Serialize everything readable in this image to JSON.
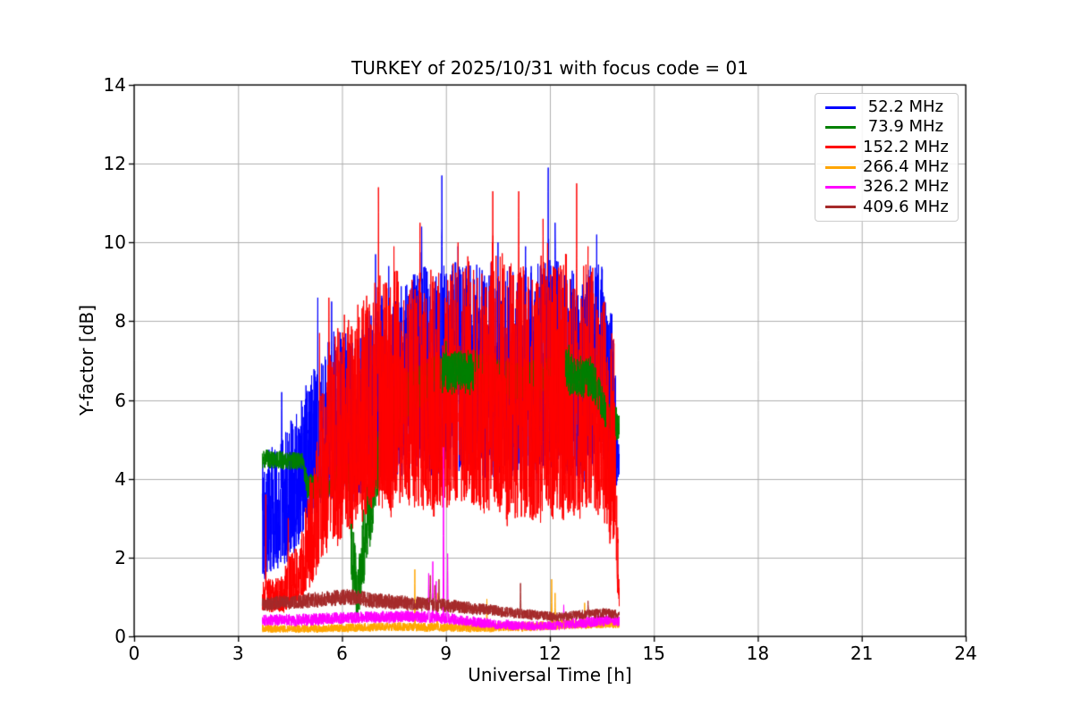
{
  "chart_data": {
    "type": "line",
    "title": "TURKEY of 2025/10/31 with focus code = 01",
    "xlabel": "Universal Time [h]",
    "ylabel": "Y-factor [dB]",
    "xlim": [
      0,
      24
    ],
    "ylim": [
      0,
      14
    ],
    "xticks": [
      0,
      3,
      6,
      9,
      12,
      15,
      18,
      21,
      24
    ],
    "yticks": [
      0,
      2,
      4,
      6,
      8,
      10,
      12,
      14
    ],
    "grid": true,
    "grid_color": "#b0b0b0",
    "axis_color": "#000000",
    "background_color": "#ffffff",
    "legend": {
      "position": "upper right",
      "border_color": "#cccccc"
    },
    "series": [
      {
        "name": "52.2 MHz",
        "label": " 52.2 MHz",
        "color": "#0000ff",
        "x_start": 3.7,
        "x_end": 14.0,
        "noise_exp": 1.35,
        "envelope": [
          [
            3.7,
            0.8,
            4.6
          ],
          [
            4.2,
            1.0,
            5.0
          ],
          [
            4.7,
            1.5,
            6.0
          ],
          [
            5.2,
            2.2,
            6.8
          ],
          [
            5.8,
            2.5,
            7.8
          ],
          [
            6.4,
            2.6,
            7.6
          ],
          [
            7.0,
            2.8,
            8.6
          ],
          [
            7.6,
            2.9,
            8.8
          ],
          [
            8.2,
            3.0,
            9.3
          ],
          [
            8.9,
            3.0,
            9.6
          ],
          [
            9.6,
            3.0,
            9.4
          ],
          [
            10.4,
            2.9,
            9.5
          ],
          [
            11.2,
            2.9,
            9.3
          ],
          [
            12.0,
            2.9,
            9.6
          ],
          [
            12.8,
            2.9,
            9.3
          ],
          [
            13.5,
            3.0,
            9.5
          ],
          [
            13.85,
            3.2,
            8.0
          ],
          [
            13.95,
            3.4,
            5.2
          ],
          [
            14.0,
            3.8,
            4.8
          ]
        ],
        "spikes": [
          [
            4.26,
            6.2
          ],
          [
            5.3,
            8.6
          ],
          [
            5.7,
            8.5
          ],
          [
            6.97,
            9.7
          ],
          [
            7.35,
            9.4
          ],
          [
            8.3,
            10.4
          ],
          [
            8.88,
            11.7
          ],
          [
            9.35,
            9.9
          ],
          [
            10.5,
            10.0
          ],
          [
            11.3,
            9.9
          ],
          [
            11.95,
            11.9
          ],
          [
            12.15,
            10.5
          ],
          [
            13.35,
            10.2
          ]
        ]
      },
      {
        "name": "73.9 MHz",
        "label": " 73.9 MHz",
        "color": "#008000",
        "x_start": 3.7,
        "x_end": 14.0,
        "noise_exp": 1.0,
        "envelope": [
          [
            3.7,
            4.15,
            4.75
          ],
          [
            4.85,
            4.1,
            4.65
          ],
          [
            5.0,
            3.35,
            4.15
          ],
          [
            5.6,
            3.3,
            4.0
          ],
          [
            6.05,
            3.6,
            4.6
          ],
          [
            6.2,
            3.4,
            4.4
          ],
          [
            6.3,
            0.1,
            3.0
          ],
          [
            6.45,
            0.05,
            1.6
          ],
          [
            6.6,
            0.8,
            3.2
          ],
          [
            6.9,
            2.2,
            4.6
          ],
          [
            7.3,
            4.4,
            6.2
          ],
          [
            8.0,
            5.4,
            6.9
          ],
          [
            8.9,
            5.8,
            7.2
          ],
          [
            9.8,
            5.9,
            7.3
          ],
          [
            10.6,
            5.7,
            7.0
          ],
          [
            11.5,
            5.7,
            7.0
          ],
          [
            12.4,
            5.9,
            7.3
          ],
          [
            13.2,
            5.7,
            7.1
          ],
          [
            13.6,
            5.0,
            6.2
          ],
          [
            13.9,
            4.7,
            5.9
          ],
          [
            14.0,
            4.8,
            5.6
          ]
        ],
        "spikes": [
          [
            9.0,
            7.5
          ],
          [
            12.55,
            7.4
          ]
        ],
        "overlay_windows": [
          [
            8.88,
            9.8
          ],
          [
            12.45,
            13.35
          ],
          [
            13.38,
            13.62
          ],
          [
            13.9,
            14.0
          ]
        ]
      },
      {
        "name": "152.2 MHz",
        "label": "152.2 MHz",
        "color": "#ff0000",
        "x_start": 3.7,
        "x_end": 14.0,
        "noise_exp": 1.5,
        "envelope": [
          [
            3.7,
            0.4,
            1.4
          ],
          [
            4.3,
            0.4,
            1.7
          ],
          [
            4.8,
            0.5,
            2.6
          ],
          [
            5.2,
            0.8,
            4.6
          ],
          [
            5.5,
            1.0,
            7.0
          ],
          [
            5.9,
            1.2,
            8.3
          ],
          [
            6.3,
            1.5,
            8.2
          ],
          [
            6.7,
            1.8,
            8.9
          ],
          [
            7.1,
            2.0,
            9.8
          ],
          [
            7.6,
            2.0,
            9.5
          ],
          [
            8.1,
            2.0,
            9.0
          ],
          [
            8.5,
            2.0,
            9.6
          ],
          [
            9.0,
            2.0,
            9.3
          ],
          [
            9.5,
            1.9,
            9.7
          ],
          [
            10.0,
            1.7,
            9.5
          ],
          [
            10.5,
            1.6,
            9.8
          ],
          [
            11.0,
            1.5,
            9.5
          ],
          [
            11.5,
            1.5,
            9.3
          ],
          [
            11.9,
            1.6,
            10.0
          ],
          [
            12.3,
            1.6,
            9.8
          ],
          [
            12.8,
            1.7,
            9.5
          ],
          [
            13.2,
            1.7,
            9.4
          ],
          [
            13.6,
            1.8,
            8.9
          ],
          [
            13.85,
            1.2,
            7.5
          ],
          [
            13.95,
            0.6,
            3.0
          ],
          [
            14.0,
            0.5,
            1.2
          ]
        ],
        "spikes": [
          [
            3.8,
            3.6
          ],
          [
            4.45,
            3.0
          ],
          [
            5.35,
            7.7
          ],
          [
            5.62,
            8.6
          ],
          [
            7.05,
            11.4
          ],
          [
            7.5,
            9.9
          ],
          [
            8.25,
            10.5
          ],
          [
            9.35,
            10.0
          ],
          [
            10.35,
            11.3
          ],
          [
            11.1,
            11.3
          ],
          [
            11.8,
            10.6
          ],
          [
            12.77,
            11.5
          ],
          [
            13.1,
            9.9
          ]
        ]
      },
      {
        "name": "266.4 MHz",
        "label": "266.4 MHz",
        "color": "#ffa500",
        "x_start": 3.7,
        "x_end": 14.0,
        "noise_exp": 1.2,
        "envelope": [
          [
            3.7,
            0.05,
            0.3
          ],
          [
            5.5,
            0.05,
            0.3
          ],
          [
            7.0,
            0.08,
            0.35
          ],
          [
            8.5,
            0.08,
            0.35
          ],
          [
            10.0,
            0.05,
            0.33
          ],
          [
            11.5,
            0.08,
            0.38
          ],
          [
            12.5,
            0.12,
            0.42
          ],
          [
            13.5,
            0.15,
            0.45
          ],
          [
            14.0,
            0.15,
            0.45
          ]
        ],
        "spikes": [
          [
            8.1,
            1.7
          ],
          [
            8.75,
            1.1
          ],
          [
            10.18,
            0.95
          ],
          [
            12.05,
            1.45
          ],
          [
            12.15,
            1.1
          ],
          [
            13.0,
            0.85
          ]
        ]
      },
      {
        "name": "326.2 MHz",
        "label": "326.2 MHz",
        "color": "#ff00ff",
        "x_start": 3.7,
        "x_end": 14.0,
        "noise_exp": 1.2,
        "envelope": [
          [
            3.7,
            0.2,
            0.55
          ],
          [
            5.0,
            0.2,
            0.58
          ],
          [
            6.5,
            0.27,
            0.63
          ],
          [
            8.0,
            0.3,
            0.66
          ],
          [
            9.0,
            0.25,
            0.6
          ],
          [
            10.0,
            0.15,
            0.48
          ],
          [
            11.0,
            0.1,
            0.4
          ],
          [
            12.0,
            0.1,
            0.38
          ],
          [
            13.0,
            0.15,
            0.5
          ],
          [
            13.6,
            0.2,
            0.55
          ],
          [
            14.0,
            0.2,
            0.52
          ]
        ],
        "spikes": [
          [
            8.5,
            1.6
          ],
          [
            8.62,
            1.9
          ],
          [
            8.72,
            1.4
          ],
          [
            8.93,
            4.8
          ],
          [
            9.05,
            2.1
          ],
          [
            12.4,
            0.8
          ]
        ]
      },
      {
        "name": "409.6 MHz",
        "label": "409.6 MHz",
        "color": "#a52a2a",
        "x_start": 3.7,
        "x_end": 14.0,
        "noise_exp": 1.0,
        "envelope": [
          [
            3.7,
            0.55,
            1.0
          ],
          [
            4.5,
            0.6,
            1.05
          ],
          [
            5.5,
            0.65,
            1.15
          ],
          [
            6.2,
            0.7,
            1.2
          ],
          [
            7.0,
            0.62,
            1.1
          ],
          [
            8.0,
            0.58,
            1.02
          ],
          [
            9.0,
            0.52,
            0.95
          ],
          [
            10.0,
            0.48,
            0.85
          ],
          [
            10.8,
            0.42,
            0.75
          ],
          [
            11.5,
            0.35,
            0.68
          ],
          [
            12.2,
            0.32,
            0.6
          ],
          [
            13.0,
            0.38,
            0.68
          ],
          [
            13.6,
            0.42,
            0.72
          ],
          [
            14.0,
            0.38,
            0.66
          ]
        ],
        "spikes": [
          [
            8.55,
            1.55
          ],
          [
            8.68,
            1.3
          ],
          [
            8.8,
            1.45
          ],
          [
            11.15,
            1.35
          ],
          [
            13.1,
            0.9
          ]
        ]
      }
    ]
  }
}
